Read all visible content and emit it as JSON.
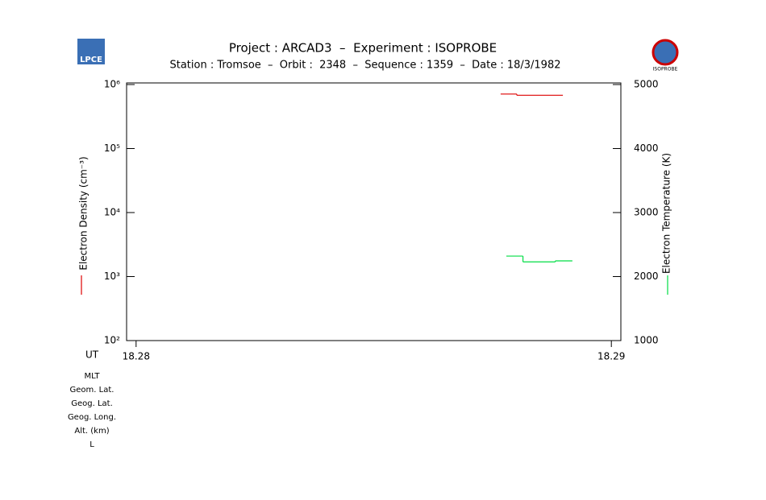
{
  "chart_data": {
    "type": "step",
    "title": "Project : ARCAD3  –  Experiment : ISOPROBE",
    "subtitle": "Station : Tromsoe  –  Orbit :  2348  –  Sequence : 1359  –  Date : 18/3/1982",
    "logo_left": "LPCE",
    "logo_right": "ISOPROBE",
    "ylabel": "Electron Density (cm⁻³)",
    "y2label": "Electron Temperature (K)",
    "xlabel": "UT",
    "row_labels": [
      "MLT",
      "Geom. Lat.",
      "Geog. Lat.",
      "Geog. Long.",
      "Alt. (km)",
      "L"
    ],
    "xlim": [
      18.2798,
      18.2902
    ],
    "xticks": [
      18.28,
      18.29
    ],
    "ylim": [
      100,
      1000000
    ],
    "ylog": true,
    "yticks": [
      {
        "value": 100,
        "label": "10²"
      },
      {
        "value": 1000,
        "label": "10³"
      },
      {
        "value": 10000,
        "label": "10⁴"
      },
      {
        "value": 100000,
        "label": "10⁵"
      },
      {
        "value": 1000000,
        "label": "10⁶"
      }
    ],
    "y2lim": [
      1000,
      5000
    ],
    "y2ticks": [
      1000,
      2000,
      3000,
      4000,
      5000
    ],
    "series": [
      {
        "name": "Electron Density",
        "color": "#dd0000",
        "x_start": [
          18.28767,
          18.28801
        ],
        "x_end": [
          18.28801,
          18.28898
        ],
        "values": [
          710000,
          680000
        ]
      },
      {
        "name": "Electron Temperature",
        "color": "#00dd44",
        "axis": "y2",
        "x_start": [
          18.28779,
          18.28814,
          18.28882
        ],
        "x_end": [
          18.28814,
          18.28882,
          18.28918
        ],
        "values": [
          2320,
          2230,
          2245
        ]
      }
    ]
  }
}
